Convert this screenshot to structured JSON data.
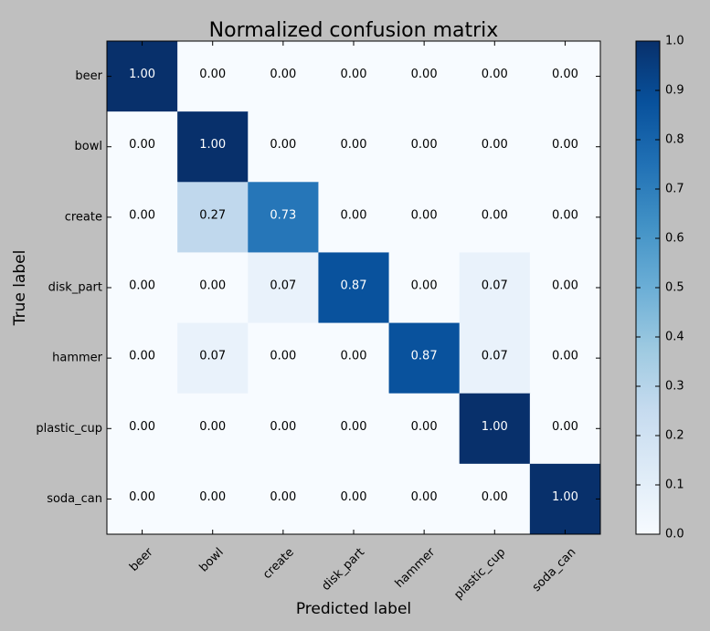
{
  "chart_data": {
    "type": "heatmap",
    "title": "Normalized confusion matrix",
    "xlabel": "Predicted label",
    "ylabel": "True label",
    "x_categories": [
      "beer",
      "bowl",
      "create",
      "disk_part",
      "hammer",
      "plastic_cup",
      "soda_can"
    ],
    "y_categories": [
      "beer",
      "bowl",
      "create",
      "disk_part",
      "hammer",
      "plastic_cup",
      "soda_can"
    ],
    "values": [
      [
        1.0,
        0.0,
        0.0,
        0.0,
        0.0,
        0.0,
        0.0
      ],
      [
        0.0,
        1.0,
        0.0,
        0.0,
        0.0,
        0.0,
        0.0
      ],
      [
        0.0,
        0.27,
        0.73,
        0.0,
        0.0,
        0.0,
        0.0
      ],
      [
        0.0,
        0.0,
        0.07,
        0.87,
        0.0,
        0.07,
        0.0
      ],
      [
        0.0,
        0.07,
        0.0,
        0.0,
        0.87,
        0.07,
        0.0
      ],
      [
        0.0,
        0.0,
        0.0,
        0.0,
        0.0,
        1.0,
        0.0
      ],
      [
        0.0,
        0.0,
        0.0,
        0.0,
        0.0,
        0.0,
        1.0
      ]
    ],
    "value_labels": [
      [
        "1.00",
        "0.00",
        "0.00",
        "0.00",
        "0.00",
        "0.00",
        "0.00"
      ],
      [
        "0.00",
        "1.00",
        "0.00",
        "0.00",
        "0.00",
        "0.00",
        "0.00"
      ],
      [
        "0.00",
        "0.27",
        "0.73",
        "0.00",
        "0.00",
        "0.00",
        "0.00"
      ],
      [
        "0.00",
        "0.00",
        "0.07",
        "0.87",
        "0.00",
        "0.07",
        "0.00"
      ],
      [
        "0.00",
        "0.07",
        "0.00",
        "0.00",
        "0.87",
        "0.07",
        "0.00"
      ],
      [
        "0.00",
        "0.00",
        "0.00",
        "0.00",
        "0.00",
        "1.00",
        "0.00"
      ],
      [
        "0.00",
        "0.00",
        "0.00",
        "0.00",
        "0.00",
        "0.00",
        "1.00"
      ]
    ],
    "colorbar": {
      "range": [
        0.0,
        1.0
      ],
      "ticks": [
        "0.0",
        "0.1",
        "0.2",
        "0.3",
        "0.4",
        "0.5",
        "0.6",
        "0.7",
        "0.8",
        "0.9",
        "1.0"
      ]
    },
    "colormap": "Blues",
    "colormap_stops": [
      "#f7fbff",
      "#deebf7",
      "#c6dbef",
      "#9ecae1",
      "#6baed6",
      "#4292c6",
      "#2171b5",
      "#08519c",
      "#08306b"
    ],
    "background_color": "#bfbfbf",
    "text_color_light": "#ffffff",
    "text_color_dark": "#000000",
    "x_tick_rotation_deg": 45,
    "grid": false
  }
}
